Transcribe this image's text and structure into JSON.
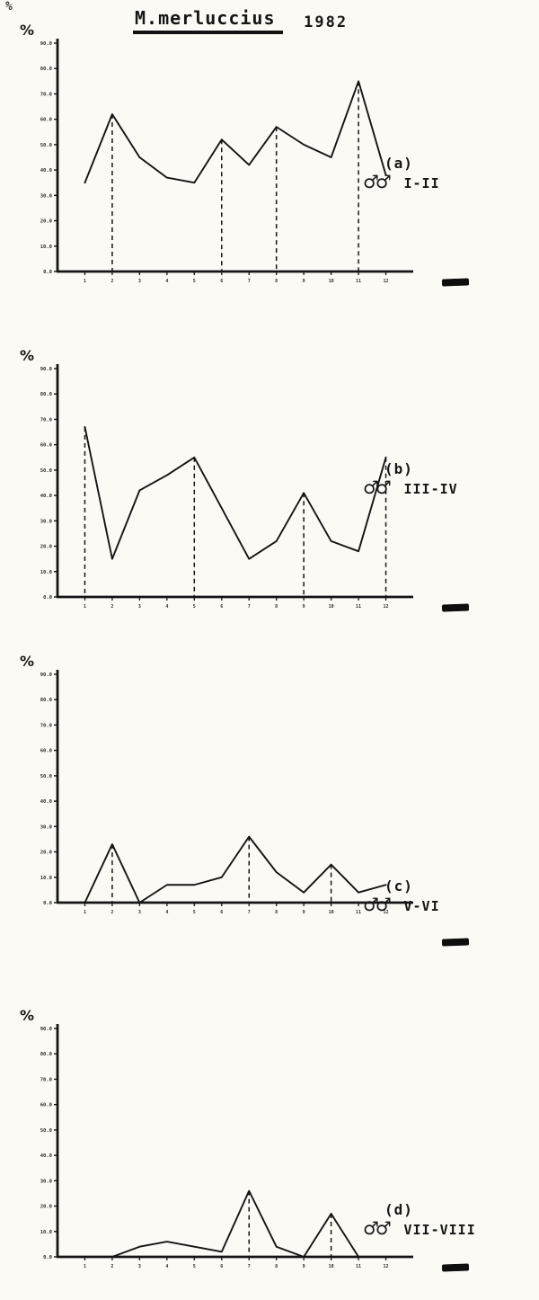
{
  "figure": {
    "title_species": "M.merluccius",
    "title_year": "1982",
    "corner_mark": "%"
  },
  "chart_data": [
    {
      "type": "line",
      "panel_label": "(a)",
      "sex_symbol": "♂♂",
      "stage_label": "I-II",
      "ylabel": "%",
      "xlabel": "",
      "x": [
        1,
        2,
        3,
        4,
        5,
        6,
        7,
        8,
        9,
        10,
        11,
        12
      ],
      "ylim": [
        0,
        90
      ],
      "yticks": [
        90,
        80,
        70,
        60,
        50,
        40,
        30,
        20,
        10,
        0
      ],
      "values": [
        35,
        62,
        45,
        37,
        35,
        52,
        42,
        57,
        50,
        45,
        75,
        38
      ],
      "dashed_peaks_at_x": [
        2,
        6,
        8,
        11
      ]
    },
    {
      "type": "line",
      "panel_label": "(b)",
      "sex_symbol": "♂♂",
      "stage_label": "III-IV",
      "ylabel": "%",
      "xlabel": "",
      "x": [
        1,
        2,
        3,
        4,
        5,
        6,
        7,
        8,
        9,
        10,
        11,
        12
      ],
      "ylim": [
        0,
        90
      ],
      "yticks": [
        90,
        80,
        70,
        60,
        50,
        40,
        30,
        20,
        10,
        0
      ],
      "values": [
        67,
        15,
        42,
        48,
        55,
        35,
        15,
        22,
        41,
        22,
        18,
        55
      ],
      "dashed_peaks_at_x": [
        1,
        5,
        9,
        12
      ]
    },
    {
      "type": "line",
      "panel_label": "(c)",
      "sex_symbol": "♂♂",
      "stage_label": "V-VI",
      "ylabel": "%",
      "xlabel": "",
      "x": [
        1,
        2,
        3,
        4,
        5,
        6,
        7,
        8,
        9,
        10,
        11,
        12
      ],
      "ylim": [
        0,
        90
      ],
      "yticks": [
        90,
        80,
        70,
        60,
        50,
        40,
        30,
        20,
        10,
        0
      ],
      "values": [
        0,
        23,
        0,
        7,
        7,
        10,
        26,
        12,
        4,
        15,
        4,
        7
      ],
      "dashed_peaks_at_x": [
        2,
        7,
        10
      ]
    },
    {
      "type": "line",
      "panel_label": "(d)",
      "sex_symbol": "♂♂",
      "stage_label": "VII-VIII",
      "ylabel": "%",
      "xlabel": "",
      "x": [
        1,
        2,
        3,
        4,
        5,
        6,
        7,
        8,
        9,
        10,
        11,
        12
      ],
      "ylim": [
        0,
        90
      ],
      "yticks": [
        90,
        80,
        70,
        60,
        50,
        40,
        30,
        20,
        10,
        0
      ],
      "values": [
        0,
        0,
        4,
        6,
        4,
        2,
        26,
        4,
        0,
        17,
        0,
        0
      ],
      "dashed_peaks_at_x": [
        7,
        10
      ]
    }
  ]
}
